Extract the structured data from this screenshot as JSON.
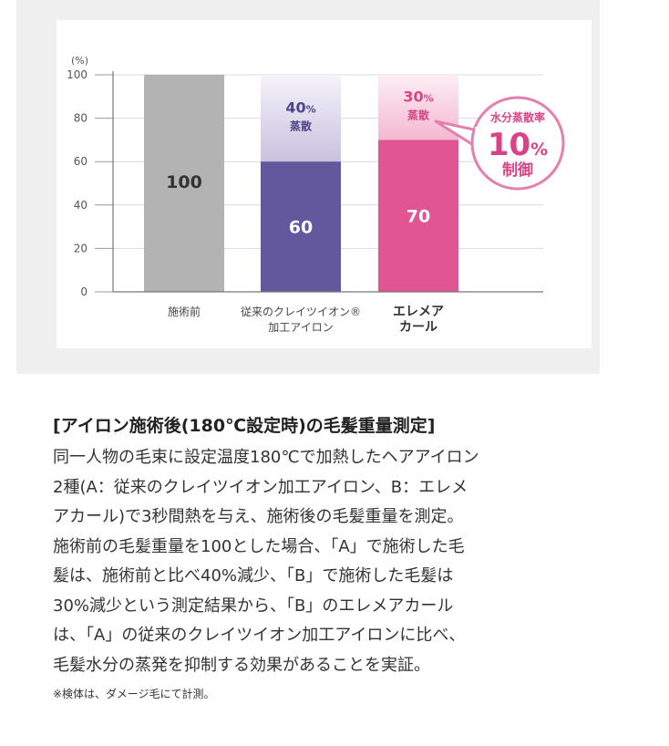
{
  "chart_data": {
    "type": "bar",
    "unit_label": "(%)",
    "ylim": [
      0,
      100
    ],
    "y_ticks": [
      "100",
      "80",
      "60",
      "40",
      "20",
      "0"
    ],
    "categories": [
      [
        "施術前"
      ],
      [
        "従来のクレイツイオン®",
        "加工アイロン"
      ],
      [
        "エレメア",
        "カール"
      ]
    ],
    "values": [
      100,
      60,
      70
    ],
    "value_labels": [
      "100",
      "60",
      "70"
    ],
    "evaporated": [
      0,
      40,
      30
    ],
    "evap_pct_labels": [
      "",
      "40",
      "30"
    ],
    "evap_pct_sign": "%",
    "evap_word": "蒸散",
    "colors": {
      "before": "#b3b3b3",
      "conventional": "#63579d",
      "conventional_evap_top": "#f5f3fa",
      "conventional_evap_bottom": "#c8c2df",
      "conventional_text": "#4e4488",
      "elemea": "#e05592",
      "elemea_evap_top": "#fdeef4",
      "elemea_evap_bottom": "#f4b8d0",
      "elemea_text": "#d94486",
      "before_text": "#333333",
      "bubble_border": "#e47fae",
      "bubble_text": "#d94486"
    },
    "callout": {
      "line1": "水分蒸散率",
      "big": "10",
      "sign": "%",
      "line3": "制御"
    }
  },
  "caption": {
    "title": "[アイロン施術後(180℃設定時)の毛髪重量測定]",
    "body": "同一人物の毛束に設定温度180℃で加熱したヘアアイロン\n2種(A：従来のクレイツイオン加工アイロン、B：エレメ\nアカール)で3秒間熱を与え、施術後の毛髪重量を測定。\n施術前の毛髪重量を100とした場合、「A」で施術した毛\n髪は、施術前と比べ40%減少、「B」で施術した毛髪は\n30%減少という測定結果から、「B」のエレメアカール\nは、「A」の従来のクレイツイオン加工アイロンに比べ、\n毛髪水分の蒸発を抑制する効果があることを実証。",
    "note": "※検体は、ダメージ毛にて計測。"
  }
}
